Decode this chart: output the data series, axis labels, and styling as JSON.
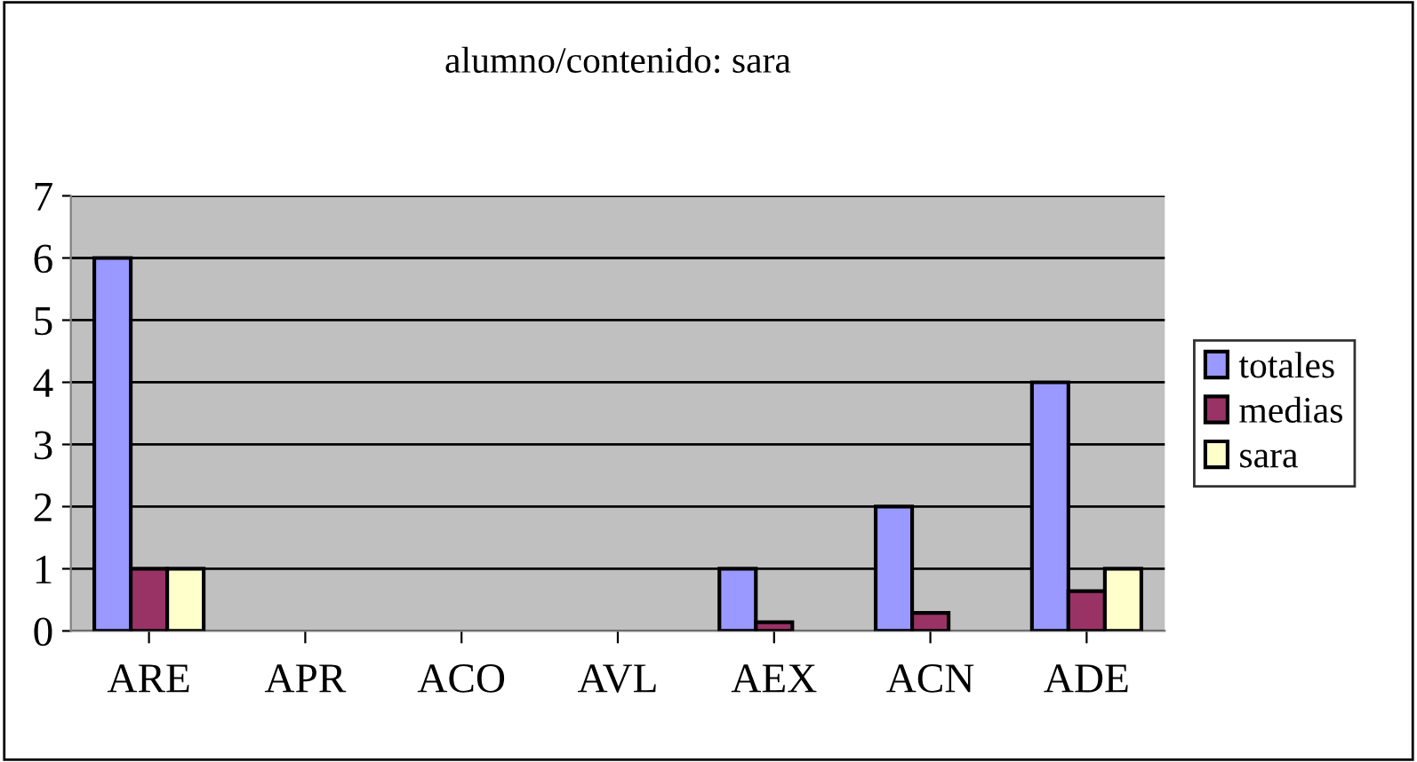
{
  "chart_data": {
    "type": "bar",
    "title": "alumno/contenido: sara",
    "categories": [
      "ARE",
      "APR",
      "ACO",
      "AVL",
      "AEX",
      "ACN",
      "ADE"
    ],
    "series": [
      {
        "name": "totales",
        "color": "#9999ff",
        "values": [
          6,
          0,
          0,
          0,
          1,
          2,
          4
        ]
      },
      {
        "name": "medias",
        "color": "#993366",
        "values": [
          1,
          0,
          0,
          0,
          0.14,
          0.29,
          0.64
        ]
      },
      {
        "name": "sara",
        "color": "#ffffcc",
        "values": [
          1,
          0,
          0,
          0,
          0,
          0,
          1
        ]
      }
    ],
    "ylim": [
      0,
      7
    ],
    "yticks": [
      0,
      1,
      2,
      3,
      4,
      5,
      6,
      7
    ],
    "grid": "y",
    "legend": "right"
  }
}
